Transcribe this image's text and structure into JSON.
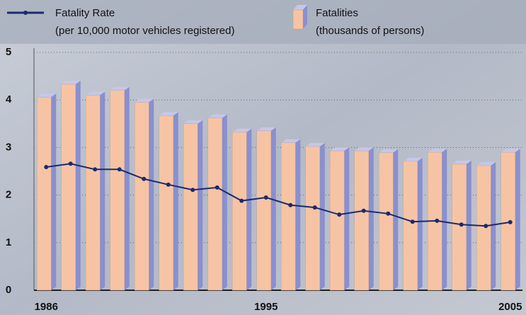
{
  "chart_data": {
    "type": "bar-line",
    "categories": [
      "1986",
      null,
      null,
      null,
      null,
      null,
      null,
      null,
      null,
      "1995",
      null,
      null,
      null,
      null,
      null,
      null,
      null,
      null,
      null,
      "2005"
    ],
    "series": [
      {
        "name": "Fatalities",
        "unit_label": "(thousands of persons)",
        "type": "bar",
        "color": "#f6c4a4",
        "values": [
          4.06,
          4.33,
          4.1,
          4.2,
          3.95,
          3.67,
          3.5,
          3.62,
          3.32,
          3.35,
          3.1,
          3.02,
          2.93,
          2.93,
          2.89,
          2.71,
          2.9,
          2.65,
          2.62,
          2.9
        ]
      },
      {
        "name": "Fatality Rate",
        "unit_label": "(per 10,000 motor vehicles registered)",
        "type": "line",
        "color": "#1b2a6e",
        "values": [
          2.59,
          2.66,
          2.54,
          2.54,
          2.34,
          2.22,
          2.11,
          2.16,
          1.88,
          1.95,
          1.79,
          1.74,
          1.59,
          1.67,
          1.61,
          1.44,
          1.46,
          1.38,
          1.35,
          1.43
        ]
      }
    ],
    "ylim": [
      0,
      5
    ],
    "yticks": [
      0,
      1,
      2,
      3,
      4,
      5
    ],
    "grid": true
  }
}
